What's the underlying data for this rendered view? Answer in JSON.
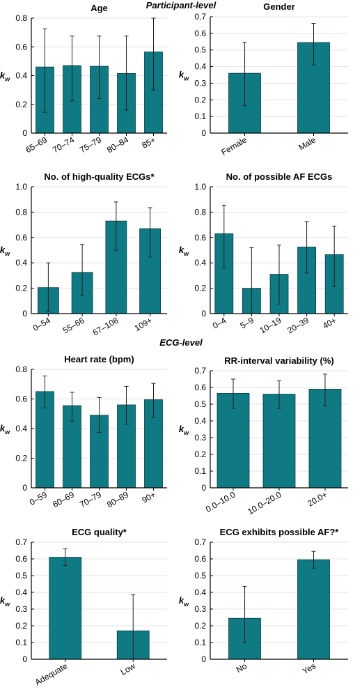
{
  "sections": {
    "participant": "Participant-level",
    "ecg": "ECG-level"
  },
  "bar_color": "#0f7a84",
  "chart_data": [
    {
      "type": "bar",
      "title": "Age",
      "ylabel": "kw",
      "ylim": [
        0,
        0.8
      ],
      "yticks": [
        "0",
        "0.2",
        "0.4",
        "0.6",
        "0.8"
      ],
      "categories": [
        "65–69",
        "70–74",
        "75–79",
        "80–84",
        "85+"
      ],
      "values": [
        0.46,
        0.47,
        0.465,
        0.415,
        0.565
      ],
      "error_low": [
        0.145,
        0.225,
        0.24,
        0.16,
        0.3
      ],
      "error_high": [
        0.725,
        0.675,
        0.675,
        0.675,
        0.8
      ]
    },
    {
      "type": "bar",
      "title": "Gender",
      "ylabel": "kw",
      "ylim": [
        0,
        0.7
      ],
      "yticks": [
        "0",
        "0.1",
        "0.2",
        "0.3",
        "0.4",
        "0.5",
        "0.6",
        "0.7"
      ],
      "categories": [
        "Female",
        "Male"
      ],
      "values": [
        0.36,
        0.545
      ],
      "error_low": [
        0.165,
        0.41
      ],
      "error_high": [
        0.545,
        0.66
      ]
    },
    {
      "type": "bar",
      "title": "No. of high-quality ECGs*",
      "ylabel": "kw",
      "ylim": [
        0,
        1.0
      ],
      "yticks": [
        "0",
        "0.2",
        "0.4",
        "0.6",
        "0.8",
        "1.0"
      ],
      "categories": [
        "0–54",
        "55–66",
        "67–108",
        "109+"
      ],
      "values": [
        0.205,
        0.325,
        0.73,
        0.67
      ],
      "error_low": [
        0.015,
        0.145,
        0.5,
        0.445
      ],
      "error_high": [
        0.4,
        0.545,
        0.88,
        0.835
      ]
    },
    {
      "type": "bar",
      "title": "No. of possible AF ECGs",
      "ylabel": "kw",
      "ylim": [
        0,
        1.0
      ],
      "yticks": [
        "0",
        "0.2",
        "0.4",
        "0.6",
        "0.8",
        "1.0"
      ],
      "categories": [
        "0–4",
        "5–9",
        "10–19",
        "20–39",
        "40+"
      ],
      "values": [
        0.63,
        0.2,
        0.31,
        0.525,
        0.465
      ],
      "error_low": [
        0.36,
        0.0,
        0.075,
        0.32,
        0.215
      ],
      "error_high": [
        0.855,
        0.52,
        0.54,
        0.725,
        0.69
      ]
    },
    {
      "type": "bar",
      "title": "Heart rate (bpm)",
      "ylabel": "kw",
      "ylim": [
        0,
        0.8
      ],
      "yticks": [
        "0",
        "0.2",
        "0.4",
        "0.6",
        "0.8"
      ],
      "categories": [
        "0–59",
        "60–69",
        "70–79",
        "80–89",
        "90+"
      ],
      "values": [
        0.65,
        0.555,
        0.49,
        0.56,
        0.595
      ],
      "error_low": [
        0.54,
        0.45,
        0.375,
        0.43,
        0.475
      ],
      "error_high": [
        0.755,
        0.645,
        0.61,
        0.685,
        0.705
      ]
    },
    {
      "type": "bar",
      "title": "RR-interval variability (%)",
      "ylabel": "kw",
      "ylim": [
        0,
        0.7
      ],
      "yticks": [
        "0",
        "0.1",
        "0.2",
        "0.3",
        "0.4",
        "0.5",
        "0.6",
        "0.7"
      ],
      "categories": [
        "0.0–10.0",
        "10.0–20.0",
        "20.0+"
      ],
      "values": [
        0.565,
        0.56,
        0.59
      ],
      "error_low": [
        0.475,
        0.475,
        0.49
      ],
      "error_high": [
        0.65,
        0.64,
        0.68
      ]
    },
    {
      "type": "bar",
      "title": "ECG quality*",
      "ylabel": "kw",
      "ylim": [
        0,
        0.7
      ],
      "yticks": [
        "0",
        "0.1",
        "0.2",
        "0.3",
        "0.4",
        "0.5",
        "0.6",
        "0.7"
      ],
      "categories": [
        "Adequate",
        "Low"
      ],
      "values": [
        0.61,
        0.17
      ],
      "error_low": [
        0.56,
        0.0
      ],
      "error_high": [
        0.66,
        0.385
      ]
    },
    {
      "type": "bar",
      "title": "ECG exhibits possible AF?*",
      "ylabel": "kw",
      "ylim": [
        0,
        0.7
      ],
      "yticks": [
        "0",
        "0.1",
        "0.2",
        "0.3",
        "0.4",
        "0.5",
        "0.6",
        "0.7"
      ],
      "categories": [
        "No",
        "Yes"
      ],
      "values": [
        0.245,
        0.595
      ],
      "error_low": [
        0.1,
        0.545
      ],
      "error_high": [
        0.435,
        0.645
      ]
    }
  ]
}
